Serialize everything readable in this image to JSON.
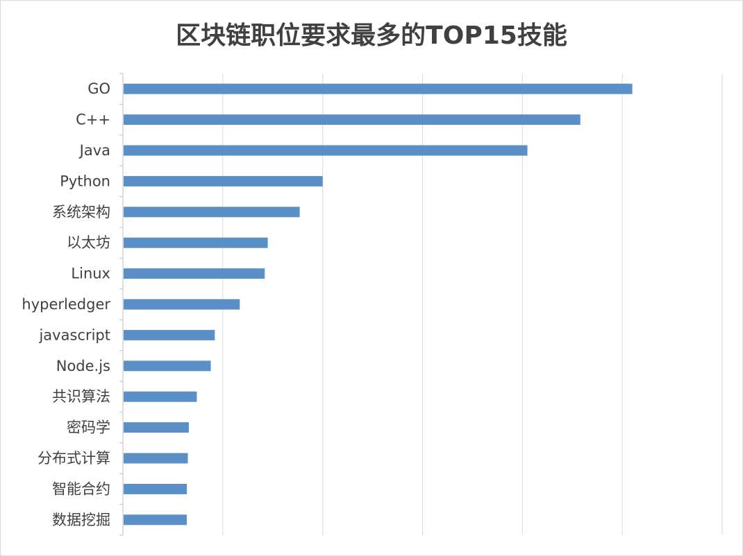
{
  "chart_data": {
    "type": "bar",
    "orientation": "horizontal",
    "title": "区块链职位要求最多的TOP15技能",
    "categories": [
      "GO",
      "C++",
      "Java",
      "Python",
      "系统架构",
      "以太坊",
      "Linux",
      "hyperledger",
      "javascript",
      "Node.js",
      "共识算法",
      "密码学",
      "分布式计算",
      "智能合约",
      "数据挖掘"
    ],
    "values": [
      51.0,
      45.8,
      40.5,
      20.0,
      17.7,
      14.5,
      14.2,
      11.7,
      9.2,
      8.8,
      7.4,
      6.6,
      6.5,
      6.4,
      6.4
    ],
    "xlim": [
      0,
      60
    ],
    "grid": true,
    "bar_color": "#5b8fc7",
    "grid_color": "#d9d9d9",
    "legend": "none",
    "tick_labels_x": "hidden"
  }
}
